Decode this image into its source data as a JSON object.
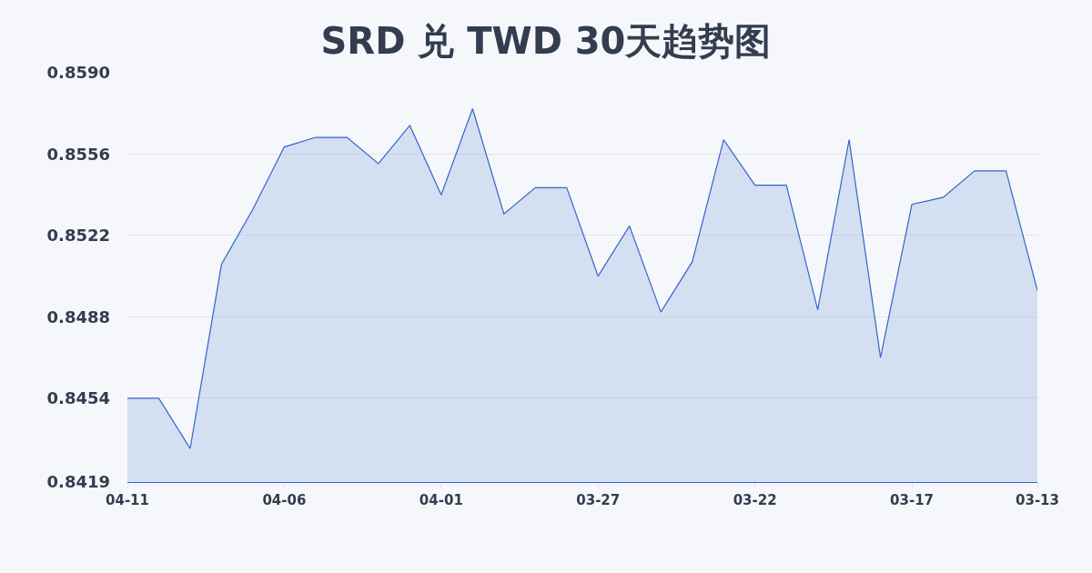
{
  "chart_data": {
    "type": "area",
    "title": "SRD 兑 TWD 30天趋势图",
    "categories": [
      "04-11",
      null,
      null,
      null,
      null,
      "04-06",
      null,
      null,
      null,
      null,
      "04-01",
      null,
      null,
      null,
      null,
      "03-27",
      null,
      null,
      null,
      null,
      "03-22",
      null,
      null,
      null,
      null,
      "03-17",
      null,
      null,
      null,
      "03-13"
    ],
    "series": [
      {
        "color": "#3366cc",
        "values": [
          0.8454,
          0.8454,
          0.8433,
          0.851,
          0.8533,
          0.8559,
          0.8563,
          0.8563,
          0.8552,
          0.8568,
          0.8539,
          0.8575,
          0.8531,
          0.8542,
          0.8542,
          0.8505,
          0.8526,
          0.849,
          0.8511,
          0.8562,
          0.8543,
          0.8543,
          0.8491,
          0.8562,
          0.8471,
          0.8535,
          0.8538,
          0.8549,
          0.8549,
          0.8499
        ]
      }
    ],
    "ylim": [
      0.8419,
      0.859
    ],
    "yticks": [
      0.8419,
      0.8454,
      0.8488,
      0.8522,
      0.8556,
      {
        "value": 0.859,
        "label": "0.8590"
      }
    ],
    "grid": "y"
  }
}
